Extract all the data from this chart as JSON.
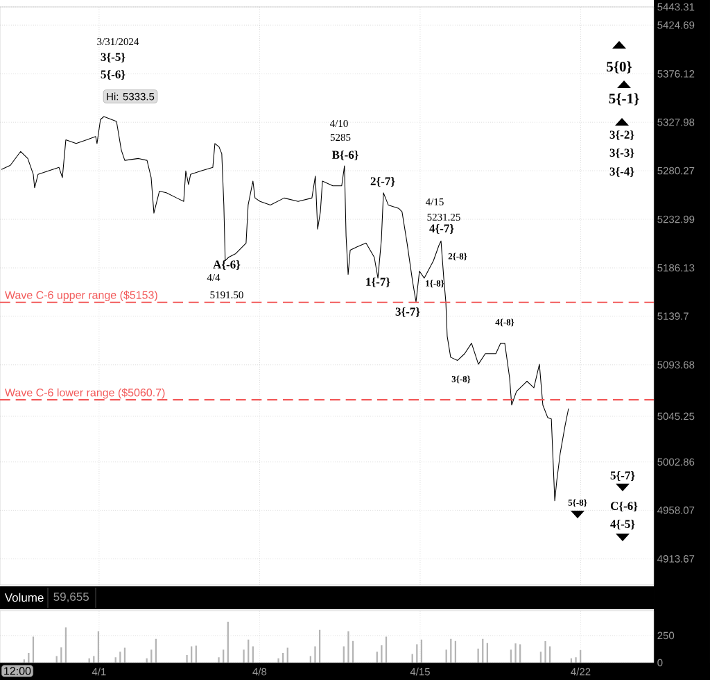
{
  "chart_data": [
    {
      "type": "line",
      "log": "y",
      "grid": true,
      "tick_labels": "y",
      "xlim": [
        "2024-03-27T16:19",
        "2024-04-25T04:34"
      ],
      "ylim": [
        4890,
        5443.31
      ],
      "xticks": [
        {
          "value": "2024-04-01",
          "label": null
        },
        {
          "value": "2024-04-08",
          "label": null
        },
        {
          "value": "2024-04-15",
          "label": null
        },
        {
          "value": "2024-04-22",
          "label": null
        }
      ],
      "yticks": [
        4913.67,
        4958.07,
        5002.86,
        5045.25,
        5093.68,
        5139.7,
        5186.13,
        5232.99,
        5280.27,
        5327.98,
        5376.12,
        5424.69,
        5443.31
      ],
      "series": [
        {
          "color": "#000000",
          "x": [
            "2024-03-27T17:46",
            "2024-03-28T03:07",
            "2024-03-28T13:55",
            "2024-03-28T21:22",
            "2024-03-29T03:07",
            "2024-03-29T04:34",
            "2024-03-29T08:10",
            "2024-03-29T18:58",
            "2024-03-30T06:00",
            "2024-03-30T09:36",
            "2024-03-30T13:12",
            "2024-03-31T00:00",
            "2024-03-31T11:02",
            "2024-03-31T20:24",
            "2024-03-31T21:50",
            "2024-04-01T01:26",
            "2024-04-01T05:02",
            "2024-04-01T18:14",
            "2024-04-01T23:17",
            "2024-04-02T02:53",
            "2024-04-02T17:17",
            "2024-04-03T02:10",
            "2024-04-03T06:29",
            "2024-04-03T09:22",
            "2024-04-03T15:07",
            "2024-04-03T22:19",
            "2024-04-04T09:22",
            "2024-04-04T16:34",
            "2024-04-04T18:43",
            "2024-04-04T21:36",
            "2024-04-04T23:46",
            "2024-04-05T10:48",
            "2024-04-05T23:02",
            "2024-04-06T01:12",
            "2024-04-06T05:31",
            "2024-04-06T08:24",
            "2024-04-06T10:34",
            "2024-04-06T12:00",
            "2024-04-06T15:36",
            "2024-04-06T23:02",
            "2024-04-07T09:50",
            "2024-04-07T12:00",
            "2024-04-07T17:02",
            "2024-04-07T19:12",
            "2024-04-08T00:29",
            "2024-04-08T11:17",
            "2024-04-09T01:41",
            "2024-04-09T16:19",
            "2024-04-10T06:43",
            "2024-04-10T10:19",
            "2024-04-10T12:43",
            "2024-04-10T15:36",
            "2024-04-10T17:46",
            "2024-04-11T04:34",
            "2024-04-11T13:55",
            "2024-04-11T16:48",
            "2024-04-11T18:29",
            "2024-04-11T20:38",
            "2024-04-11T22:48",
            "2024-04-12T06:00",
            "2024-04-12T15:22",
            "2024-04-13T00:00",
            "2024-04-13T03:50",
            "2024-04-13T07:26",
            "2024-04-13T09:36",
            "2024-04-13T14:38",
            "2024-04-14T01:26",
            "2024-04-14T05:02",
            "2024-04-14T10:19",
            "2024-04-14T16:05",
            "2024-04-14T19:41",
            "2024-04-14T23:17",
            "2024-04-15T04:19",
            "2024-04-15T13:55",
            "2024-04-15T19:41",
            "2024-04-15T21:50",
            "2024-04-16T00:43",
            "2024-04-16T02:53",
            "2024-04-16T04:19",
            "2024-04-16T07:55",
            "2024-04-16T15:07",
            "2024-04-16T22:34",
            "2024-04-17T05:46",
            "2024-04-17T12:58",
            "2024-04-17T20:10",
            "2024-04-18T07:12",
            "2024-04-18T12:14",
            "2024-04-18T16:34",
            "2024-04-18T21:36",
            "2024-04-18T23:46",
            "2024-04-19T04:48",
            "2024-04-19T15:50",
            "2024-04-19T23:02",
            "2024-04-20T04:48",
            "2024-04-20T08:24",
            "2024-04-20T13:26",
            "2024-04-20T17:17",
            "2024-04-20T20:53",
            "2024-04-20T23:02",
            "2024-04-21T02:38",
            "2024-04-21T07:41",
            "2024-04-21T11:17"
          ],
          "values": [
            5281.6,
            5285.6,
            5299.1,
            5292.4,
            5276.9,
            5263.6,
            5276.9,
            5280.3,
            5283.6,
            5273.6,
            5310.5,
            5307.1,
            5310.5,
            5313.9,
            5307.1,
            5330.7,
            5333.5,
            5328.7,
            5300.4,
            5290.4,
            5292.4,
            5290.4,
            5273.6,
            5239.0,
            5260.3,
            5258.9,
            5253.6,
            5250.3,
            5280.3,
            5267.0,
            5276.9,
            5280.3,
            5283.6,
            5307.1,
            5303.7,
            5297.0,
            5247.0,
            5192.9,
            5196.3,
            5199.7,
            5210.0,
            5247.0,
            5270.3,
            5253.6,
            5250.3,
            5247.0,
            5253.6,
            5250.3,
            5253.6,
            5275.0,
            5223.5,
            5240.3,
            5270.3,
            5265.6,
            5265.6,
            5285.0,
            5216.7,
            5179.6,
            5203.1,
            5206.5,
            5210.0,
            5196.3,
            5176.3,
            5213.3,
            5258.9,
            5247.0,
            5243.6,
            5240.3,
            5210.0,
            5173.0,
            5153.4,
            5182.9,
            5176.3,
            5192.9,
            5208.0,
            5212.0,
            5176.3,
            5153.4,
            5120.6,
            5100.9,
            5097.6,
            5104.2,
            5114.1,
            5094.3,
            5104.2,
            5104.2,
            5114.1,
            5114.1,
            5081.5,
            5055.8,
            5068.6,
            5078.3,
            5071.9,
            5094.3,
            5055.8,
            5044.3,
            5042.9,
            4966.9,
            4985.8,
            5011.1,
            5036.6,
            5052.6
          ]
        }
      ],
      "ref_lines": [
        {
          "axis": "y",
          "value": 5153,
          "label": "Wave C-6 upper range ($5153)",
          "color": "#f25a5a",
          "line_style": "dashed"
        },
        {
          "axis": "y",
          "value": 5060.7,
          "label": "Wave C-6 lower range ($5060.7)",
          "color": "#f25a5a",
          "line_style": "dashed"
        }
      ],
      "annotations": [
        "3/31/2024",
        "3{-5}",
        "5{-6}",
        "Hi: 5333.5",
        "A{-6}",
        "4/4",
        "5191.50",
        "4/10",
        "5285",
        "B{-6}",
        "2{-7}",
        "4/15",
        "5231.25",
        "4{-7}",
        "2{-8}",
        "1{-7}",
        "1{-8}",
        "3{-7}",
        "4{-8}",
        "3{-8}",
        "5{0}",
        "5{-1}",
        "3{-2}",
        "3{-3}",
        "3{-4}",
        "5{-7}",
        "C{-6}",
        "4{-5}",
        "5{-8}"
      ]
    },
    {
      "type": "bar",
      "title": "Volume",
      "grid": true,
      "color": "#b4b4b4",
      "annotations": [
        "59,655",
        "12:00"
      ],
      "xlim": [
        "2024-03-27T16:19",
        "2024-04-25T04:34"
      ],
      "ylim": [
        0,
        480
      ],
      "xticks": [
        {
          "value": "2024-04-01",
          "label": "4/1"
        },
        {
          "value": "2024-04-08",
          "label": "4/8"
        },
        {
          "value": "2024-04-15",
          "label": "4/15"
        },
        {
          "value": "2024-04-22",
          "label": "4/22"
        }
      ],
      "yticks": [
        0,
        250
      ],
      "x": [
        "2024-03-28T17:31",
        "2024-03-28T22:19",
        "2024-03-29T03:07",
        "2024-03-30T03:36",
        "2024-03-30T08:24",
        "2024-03-30T13:12",
        "2024-03-31T13:41",
        "2024-03-31T18:29",
        "2024-03-31T23:17",
        "2024-04-01T17:17",
        "2024-04-01T22:05",
        "2024-04-02T02:53",
        "2024-04-03T01:55",
        "2024-04-03T06:43",
        "2024-04-03T11:31",
        "2024-04-04T19:55",
        "2024-04-05T00:43",
        "2024-04-05T05:31",
        "2024-04-06T05:17",
        "2024-04-06T10:05",
        "2024-04-06T14:53",
        "2024-04-07T07:26",
        "2024-04-07T12:14",
        "2024-04-07T17:02",
        "2024-04-08T19:41",
        "2024-04-09T00:29",
        "2024-04-09T05:17",
        "2024-04-10T05:17",
        "2024-04-10T10:05",
        "2024-04-10T14:53",
        "2024-04-11T16:05",
        "2024-04-11T20:53",
        "2024-04-12T01:41",
        "2024-04-13T02:53",
        "2024-04-13T07:41",
        "2024-04-13T12:29",
        "2024-04-14T15:50",
        "2024-04-14T20:38",
        "2024-04-15T01:26",
        "2024-04-16T03:22",
        "2024-04-16T08:10",
        "2024-04-16T12:58",
        "2024-04-17T12:43",
        "2024-04-17T17:31",
        "2024-04-17T22:19",
        "2024-04-18T23:02",
        "2024-04-19T03:50",
        "2024-04-19T08:38",
        "2024-04-20T06:14",
        "2024-04-20T11:02",
        "2024-04-20T15:50",
        "2024-04-21T14:10",
        "2024-04-21T18:58",
        "2024-04-21T23:46"
      ],
      "values": [
        30,
        90,
        240,
        60,
        140,
        325,
        40,
        60,
        290,
        50,
        100,
        137,
        40,
        120,
        219,
        70,
        150,
        156,
        50,
        120,
        377,
        120,
        212,
        150,
        40,
        90,
        137,
        60,
        150,
        302,
        150,
        290,
        200,
        100,
        160,
        240,
        80,
        170,
        212,
        120,
        219,
        200,
        130,
        219,
        180,
        120,
        177,
        170,
        100,
        198,
        150,
        40,
        50,
        115
      ]
    }
  ]
}
